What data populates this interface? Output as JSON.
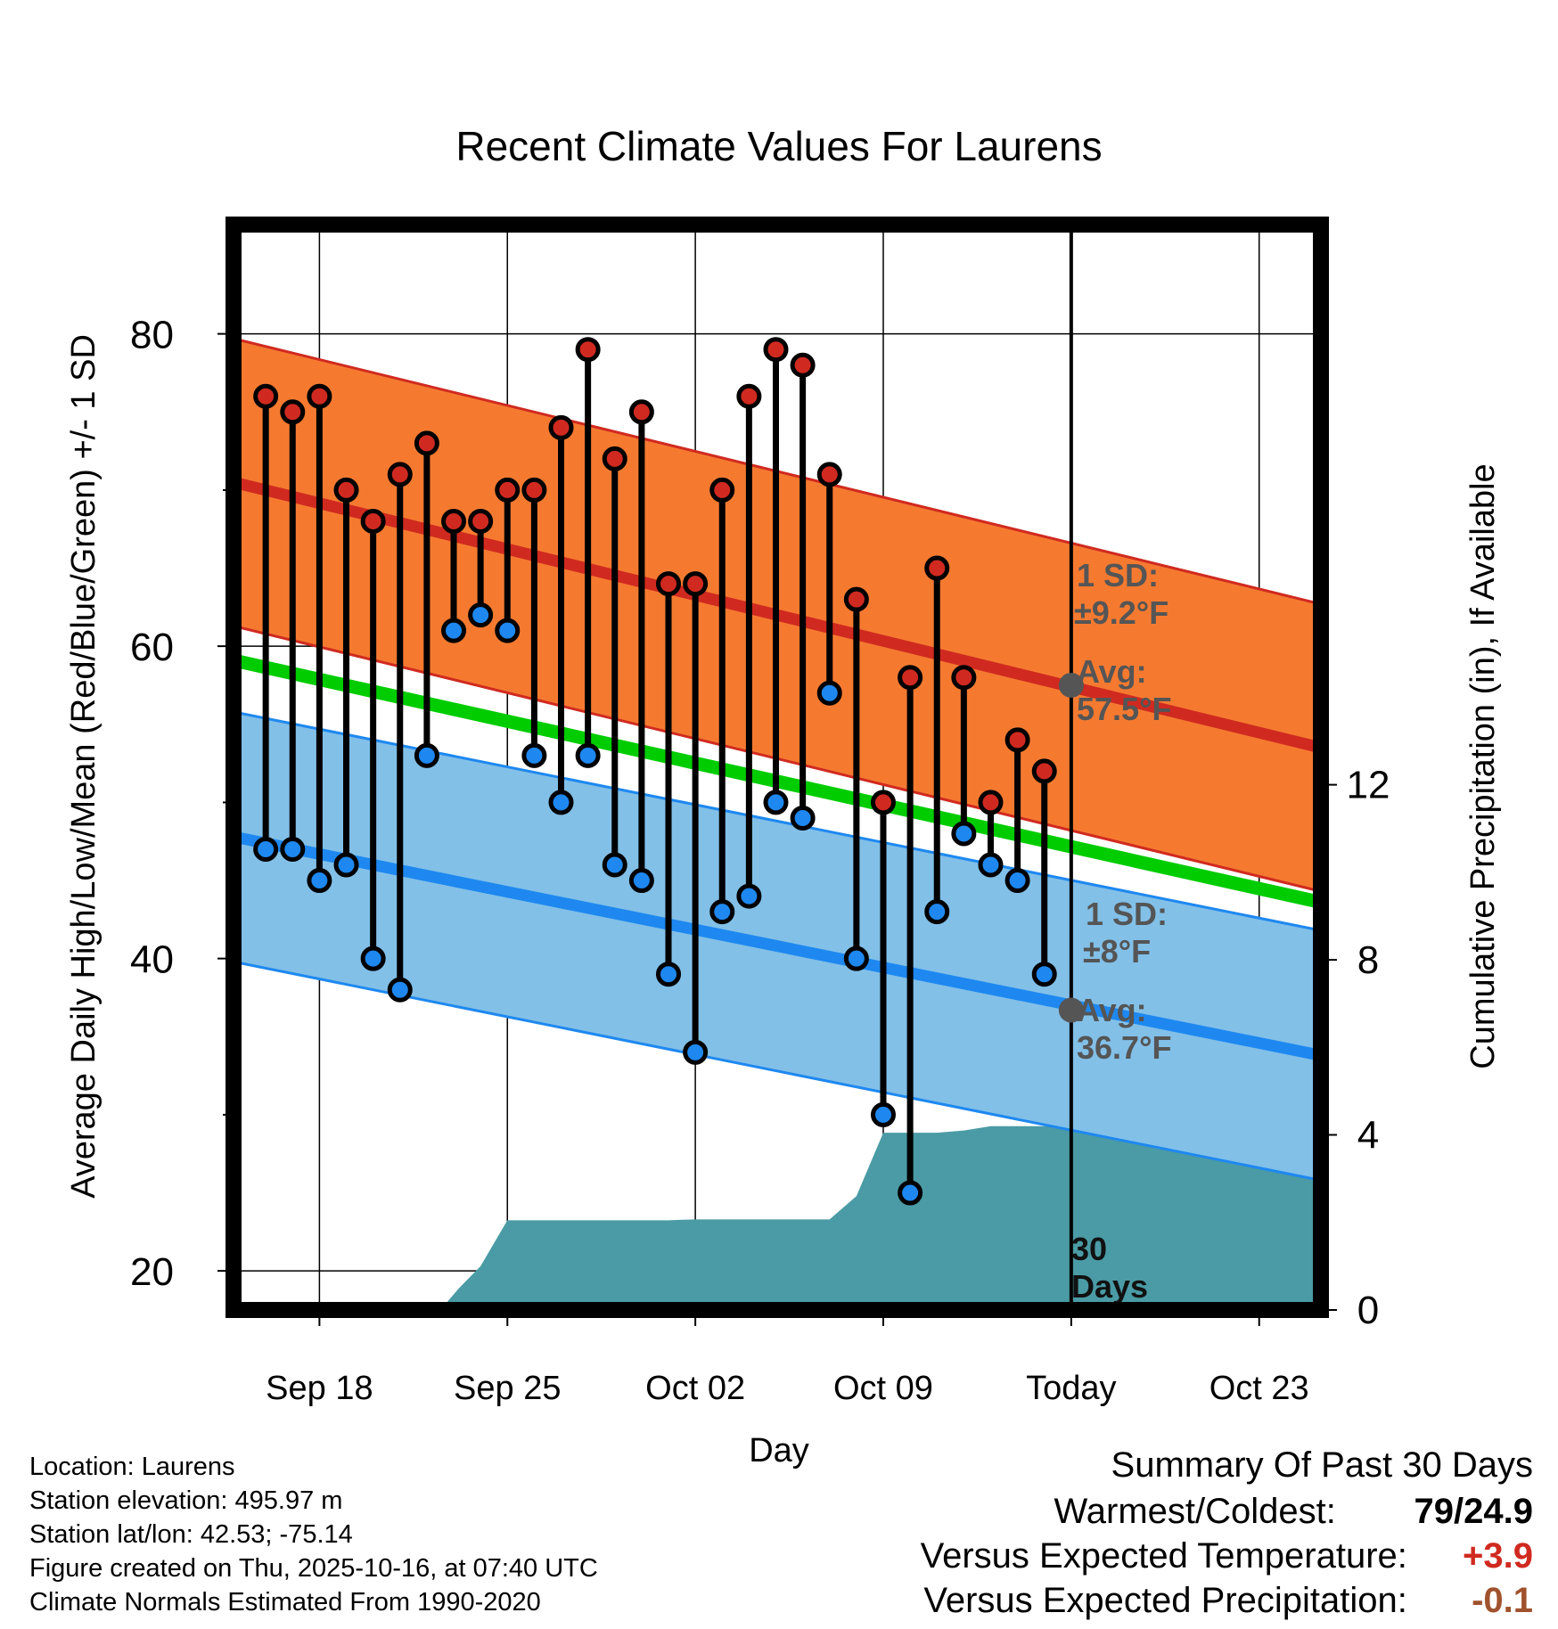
{
  "chart_data": {
    "type": "line",
    "title": "Recent Climate Values For Laurens",
    "xlabel": "Day",
    "ylabel": "Average Daily High/Low/Mean (Red/Blue/Green) +/- 1 SD",
    "y2label": "Cumulative Precipitation (in), If Available",
    "ylim": [
      17.5,
      87
    ],
    "y2lim": [
      0,
      24.8
    ],
    "yticks": [
      20,
      40,
      60,
      80
    ],
    "y2ticks": [
      0,
      4,
      8,
      12
    ],
    "xlim": [
      -3.2,
      37.3
    ],
    "xticks": [
      {
        "day": 0,
        "label": "Sep 18"
      },
      {
        "day": 7,
        "label": "Sep 25"
      },
      {
        "day": 14,
        "label": "Oct 02"
      },
      {
        "day": 21,
        "label": "Oct 09"
      },
      {
        "day": 28,
        "label": "Today"
      },
      {
        "day": 35,
        "label": "Oct 23"
      }
    ],
    "today_day": 28,
    "normal_high": {
      "start": [
        -3.2,
        70.5
      ],
      "end": [
        37.3,
        53.5
      ],
      "sd": 9.2
    },
    "normal_low": {
      "start": [
        -3.2,
        47.8
      ],
      "end": [
        37.3,
        33.8
      ],
      "sd": 8
    },
    "normal_mean": {
      "start": [
        -3.2,
        59.1
      ],
      "end": [
        37.3,
        43.6
      ]
    },
    "days": [
      -2,
      -1,
      0,
      1,
      2,
      3,
      4,
      5,
      6,
      7,
      8,
      9,
      10,
      11,
      12,
      13,
      14,
      15,
      16,
      17,
      18,
      19,
      20,
      21,
      22,
      23,
      24,
      25,
      26,
      27
    ],
    "highs": [
      76,
      75,
      76,
      70,
      68,
      71,
      73,
      68,
      68,
      70,
      70,
      74,
      79,
      72,
      75,
      64,
      64,
      70,
      76,
      79,
      78,
      71,
      63,
      50,
      58,
      65,
      58,
      50,
      54,
      52
    ],
    "lows": [
      47,
      47,
      45,
      46,
      40,
      38,
      53,
      61,
      62,
      61,
      53,
      50,
      53,
      46,
      45,
      39,
      34,
      43,
      44,
      50,
      49,
      57,
      40,
      30,
      25,
      43,
      48,
      46,
      45,
      39
    ],
    "precip_cumulative": {
      "days": [
        -3.2,
        4.5,
        5.2,
        6.0,
        7.0,
        13.0,
        14.0,
        18.0,
        19.0,
        20.0,
        21.0,
        23.0,
        24.0,
        25.0,
        26.0,
        27.0,
        28.0,
        37.3
      ],
      "values": [
        0,
        0,
        0.5,
        1.0,
        2.05,
        2.05,
        2.07,
        2.07,
        2.07,
        2.6,
        4.05,
        4.05,
        4.1,
        4.2,
        4.2,
        4.2,
        4.2,
        4.2
      ]
    },
    "annotations": {
      "high_sd_label": "1 SD:",
      "high_sd_value": "±9.2°F",
      "high_avg_label": "Avg:",
      "high_avg_value": "57.5°F",
      "low_sd_label": "1 SD:",
      "low_sd_value": "±8°F",
      "low_avg_label": "Avg:",
      "low_avg_value": "36.7°F",
      "period_number": "30",
      "period_unit": "Days",
      "today_high": 57.5,
      "today_low": 36.7
    },
    "colors": {
      "high_band": "#F57A30",
      "high_line": "#D02A20",
      "low_band": "#82C0E8",
      "low_line": "#1E88F0",
      "mean_line": "#00CC00",
      "precip": "#4A9BA5",
      "high_dot": "#D02A20",
      "low_dot": "#1E88F0"
    }
  },
  "meta": {
    "location": "Location: Laurens",
    "elevation": "Station elevation: 495.97 m",
    "latlon": "Station lat/lon: 42.53; -75.14",
    "created": "Figure created on Thu, 2025-10-16, at 07:40 UTC",
    "normals": "Climate Normals Estimated From 1990-2020"
  },
  "summary": {
    "title": "Summary Of Past 30 Days",
    "warm_cold_label": "Warmest/Coldest:",
    "warm_cold_value": "79/24.9",
    "temp_label": "Versus Expected Temperature:",
    "temp_value": "+3.9",
    "temp_color": "#D02A20",
    "precip_label": "Versus Expected Precipitation:",
    "precip_value": "-0.1",
    "precip_color": "#A0522D"
  }
}
